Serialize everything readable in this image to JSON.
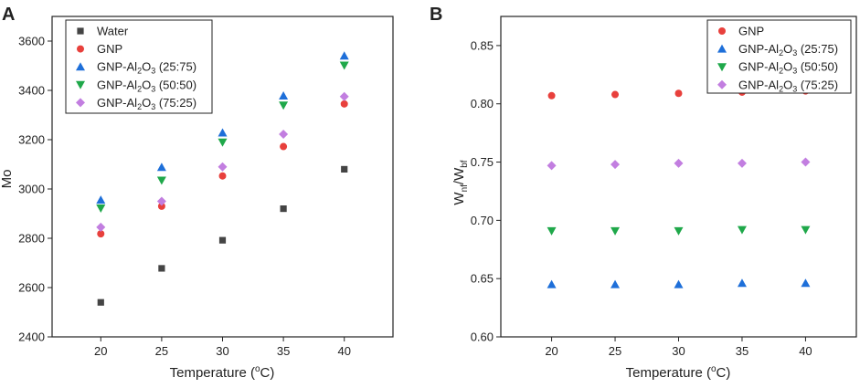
{
  "colors": {
    "water": "#444444",
    "gnp": "#e8403c",
    "gnp_al2o3_25_75": "#1e6fd9",
    "gnp_al2o3_50_50": "#1fa84a",
    "gnp_al2o3_75_25": "#c27ee0"
  },
  "chart_data": [
    {
      "panel": "A",
      "type": "scatter",
      "xlabel": "Temperature (°C)",
      "xlabel_parts": {
        "prefix": "Temperature (",
        "sup": "o",
        "suffix": "C)"
      },
      "ylabel": "Mo",
      "x": [
        20,
        25,
        30,
        35,
        40
      ],
      "xlim": [
        16,
        44
      ],
      "ylim": [
        2400,
        3700
      ],
      "yticks": [
        2400,
        2600,
        2800,
        3000,
        3200,
        3400,
        3600
      ],
      "legend_position": "top-left",
      "series": [
        {
          "name": "Water",
          "label_parts": [
            "Water"
          ],
          "marker": "square",
          "color": "#444444",
          "values": [
            2540,
            2678,
            2792,
            2920,
            3080
          ]
        },
        {
          "name": "GNP",
          "label_parts": [
            "GNP"
          ],
          "marker": "circle",
          "color": "#e8403c",
          "values": [
            2818,
            2930,
            3053,
            3172,
            3345
          ]
        },
        {
          "name": "GNP-Al2O3 (25:75)",
          "label_parts": [
            "GNP-Al",
            "2",
            "O",
            "3",
            " (25:75)"
          ],
          "marker": "triangle-up",
          "color": "#1e6fd9",
          "values": [
            2955,
            3088,
            3228,
            3378,
            3540
          ]
        },
        {
          "name": "GNP-Al2O3 (50:50)",
          "label_parts": [
            "GNP-Al",
            "2",
            "O",
            "3",
            " (50:50)"
          ],
          "marker": "triangle-down",
          "color": "#1fa84a",
          "values": [
            2922,
            3035,
            3190,
            3340,
            3502
          ]
        },
        {
          "name": "GNP-Al2O3 (75:25)",
          "label_parts": [
            "GNP-Al",
            "2",
            "O",
            "3",
            " (75:25)"
          ],
          "marker": "diamond",
          "color": "#c27ee0",
          "values": [
            2845,
            2950,
            3090,
            3222,
            3375
          ]
        }
      ]
    },
    {
      "panel": "B",
      "type": "scatter",
      "xlabel": "Temperature (°C)",
      "xlabel_parts": {
        "prefix": "Temperature (",
        "sup": "o",
        "suffix": "C)"
      },
      "ylabel": "Wnf/Wbf",
      "ylabel_parts": {
        "main1": "W",
        "sub1": "nf",
        "main2": "/W",
        "sub2": "bf"
      },
      "x": [
        20,
        25,
        30,
        35,
        40
      ],
      "xlim": [
        16,
        44
      ],
      "ylim": [
        0.6,
        0.875
      ],
      "yticks": [
        0.6,
        0.65,
        0.7,
        0.75,
        0.8,
        0.85
      ],
      "legend_position": "top-right",
      "series": [
        {
          "name": "GNP",
          "label_parts": [
            "GNP"
          ],
          "marker": "circle",
          "color": "#e8403c",
          "values": [
            0.807,
            0.808,
            0.809,
            0.81,
            0.811
          ]
        },
        {
          "name": "GNP-Al2O3 (25:75)",
          "label_parts": [
            "GNP-Al",
            "2",
            "O",
            "3",
            " (25:75)"
          ],
          "marker": "triangle-up",
          "color": "#1e6fd9",
          "values": [
            0.645,
            0.645,
            0.645,
            0.646,
            0.646
          ]
        },
        {
          "name": "GNP-Al2O3 (50:50)",
          "label_parts": [
            "GNP-Al",
            "2",
            "O",
            "3",
            " (50:50)"
          ],
          "marker": "triangle-down",
          "color": "#1fa84a",
          "values": [
            0.691,
            0.691,
            0.691,
            0.692,
            0.692
          ]
        },
        {
          "name": "GNP-Al2O3 (75:25)",
          "label_parts": [
            "GNP-Al",
            "2",
            "O",
            "3",
            " (75:25)"
          ],
          "marker": "diamond",
          "color": "#c27ee0",
          "values": [
            0.747,
            0.748,
            0.749,
            0.749,
            0.75
          ]
        }
      ]
    }
  ]
}
